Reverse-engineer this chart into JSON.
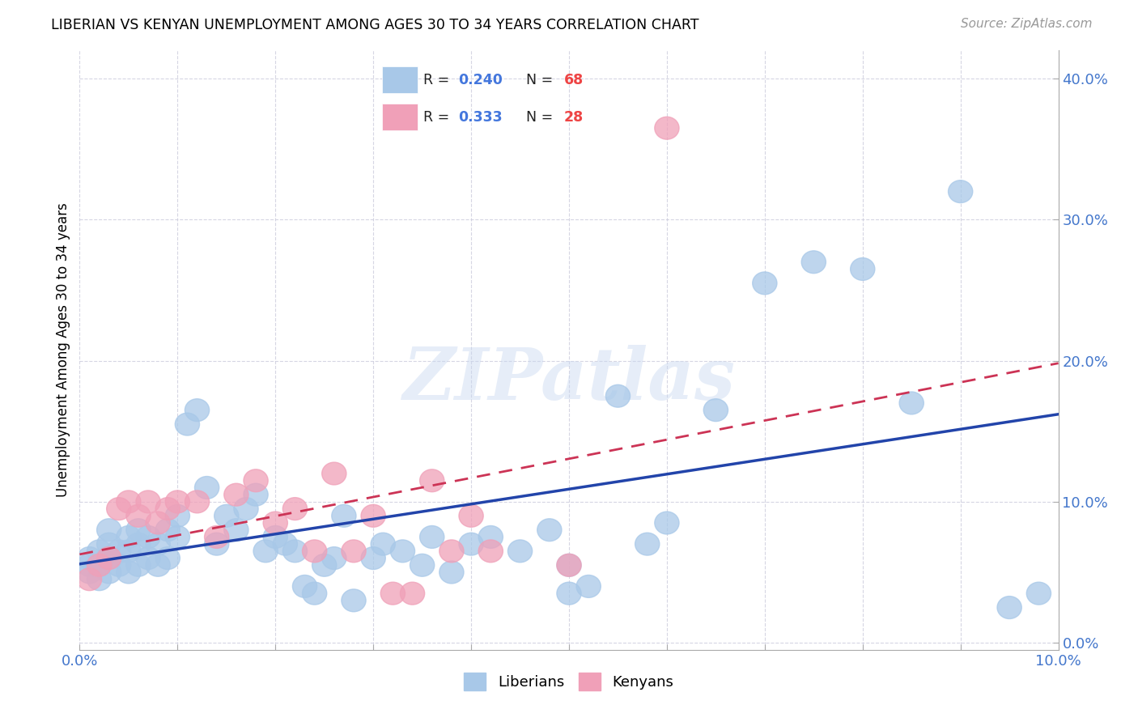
{
  "title": "LIBERIAN VS KENYAN UNEMPLOYMENT AMONG AGES 30 TO 34 YEARS CORRELATION CHART",
  "source": "Source: ZipAtlas.com",
  "ylabel": "Unemployment Among Ages 30 to 34 years",
  "xlim": [
    0.0,
    0.1
  ],
  "ylim": [
    -0.005,
    0.42
  ],
  "xticks": [
    0.0,
    0.01,
    0.02,
    0.03,
    0.04,
    0.05,
    0.06,
    0.07,
    0.08,
    0.09,
    0.1
  ],
  "yticks": [
    0.0,
    0.1,
    0.2,
    0.3,
    0.4
  ],
  "blue_R": 0.24,
  "blue_N": 68,
  "pink_R": 0.333,
  "pink_N": 28,
  "blue_color": "#a8c8e8",
  "pink_color": "#f0a0b8",
  "trend_blue": "#2244aa",
  "trend_pink": "#cc3355",
  "watermark": "ZIPatlas",
  "legend_label_blue": "Liberians",
  "legend_label_pink": "Kenyans",
  "blue_scatter_x": [
    0.001,
    0.001,
    0.001,
    0.002,
    0.002,
    0.002,
    0.003,
    0.003,
    0.003,
    0.003,
    0.004,
    0.004,
    0.005,
    0.005,
    0.005,
    0.006,
    0.006,
    0.006,
    0.007,
    0.007,
    0.008,
    0.008,
    0.009,
    0.009,
    0.01,
    0.01,
    0.011,
    0.012,
    0.013,
    0.014,
    0.015,
    0.016,
    0.017,
    0.018,
    0.019,
    0.02,
    0.021,
    0.022,
    0.023,
    0.024,
    0.025,
    0.026,
    0.027,
    0.028,
    0.03,
    0.031,
    0.033,
    0.035,
    0.036,
    0.038,
    0.04,
    0.042,
    0.045,
    0.048,
    0.05,
    0.05,
    0.052,
    0.055,
    0.058,
    0.06,
    0.065,
    0.07,
    0.075,
    0.08,
    0.085,
    0.09,
    0.095,
    0.098
  ],
  "blue_scatter_y": [
    0.05,
    0.055,
    0.06,
    0.045,
    0.055,
    0.065,
    0.05,
    0.06,
    0.07,
    0.08,
    0.055,
    0.065,
    0.05,
    0.065,
    0.075,
    0.055,
    0.07,
    0.08,
    0.06,
    0.075,
    0.055,
    0.07,
    0.06,
    0.08,
    0.075,
    0.09,
    0.155,
    0.165,
    0.11,
    0.07,
    0.09,
    0.08,
    0.095,
    0.105,
    0.065,
    0.075,
    0.07,
    0.065,
    0.04,
    0.035,
    0.055,
    0.06,
    0.09,
    0.03,
    0.06,
    0.07,
    0.065,
    0.055,
    0.075,
    0.05,
    0.07,
    0.075,
    0.065,
    0.08,
    0.055,
    0.035,
    0.04,
    0.175,
    0.07,
    0.085,
    0.165,
    0.255,
    0.27,
    0.265,
    0.17,
    0.32,
    0.025,
    0.035
  ],
  "pink_scatter_x": [
    0.001,
    0.002,
    0.003,
    0.004,
    0.005,
    0.006,
    0.007,
    0.008,
    0.009,
    0.01,
    0.012,
    0.014,
    0.016,
    0.018,
    0.02,
    0.022,
    0.024,
    0.026,
    0.028,
    0.03,
    0.032,
    0.034,
    0.036,
    0.038,
    0.04,
    0.042,
    0.05,
    0.06
  ],
  "pink_scatter_y": [
    0.045,
    0.055,
    0.06,
    0.095,
    0.1,
    0.09,
    0.1,
    0.085,
    0.095,
    0.1,
    0.1,
    0.075,
    0.105,
    0.115,
    0.085,
    0.095,
    0.065,
    0.12,
    0.065,
    0.09,
    0.035,
    0.035,
    0.115,
    0.065,
    0.09,
    0.065,
    0.055,
    0.365
  ]
}
